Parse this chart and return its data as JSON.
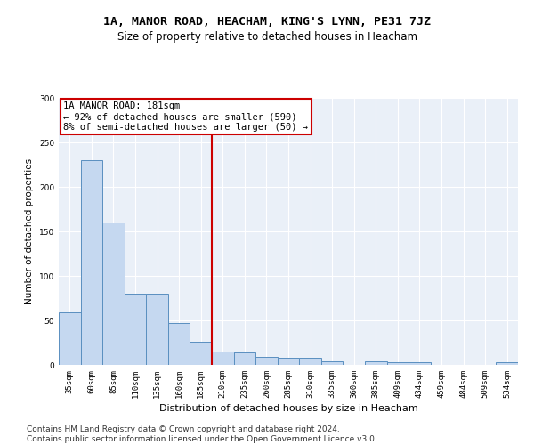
{
  "title": "1A, MANOR ROAD, HEACHAM, KING'S LYNN, PE31 7JZ",
  "subtitle": "Size of property relative to detached houses in Heacham",
  "xlabel": "Distribution of detached houses by size in Heacham",
  "ylabel": "Number of detached properties",
  "categories": [
    "35sqm",
    "60sqm",
    "85sqm",
    "110sqm",
    "135sqm",
    "160sqm",
    "185sqm",
    "210sqm",
    "235sqm",
    "260sqm",
    "285sqm",
    "310sqm",
    "335sqm",
    "360sqm",
    "385sqm",
    "409sqm",
    "434sqm",
    "459sqm",
    "484sqm",
    "509sqm",
    "534sqm"
  ],
  "values": [
    59,
    230,
    160,
    80,
    80,
    47,
    26,
    15,
    14,
    9,
    8,
    8,
    4,
    0,
    4,
    3,
    3,
    0,
    0,
    0,
    3
  ],
  "bar_color": "#c5d8f0",
  "bar_edge_color": "#5a8fc0",
  "vline_x": 6.5,
  "vline_color": "#cc0000",
  "annotation_line1": "1A MANOR ROAD: 181sqm",
  "annotation_line2": "← 92% of detached houses are smaller (590)",
  "annotation_line3": "8% of semi-detached houses are larger (50) →",
  "annotation_box_color": "#cc0000",
  "ylim": [
    0,
    300
  ],
  "yticks": [
    0,
    50,
    100,
    150,
    200,
    250,
    300
  ],
  "footer_text": "Contains HM Land Registry data © Crown copyright and database right 2024.\nContains public sector information licensed under the Open Government Licence v3.0.",
  "bg_color": "#eaf0f8",
  "grid_color": "#ffffff",
  "title_fontsize": 9.5,
  "subtitle_fontsize": 8.5,
  "xlabel_fontsize": 8,
  "ylabel_fontsize": 7.5,
  "tick_fontsize": 6.5,
  "annotation_fontsize": 7.5,
  "footer_fontsize": 6.5
}
